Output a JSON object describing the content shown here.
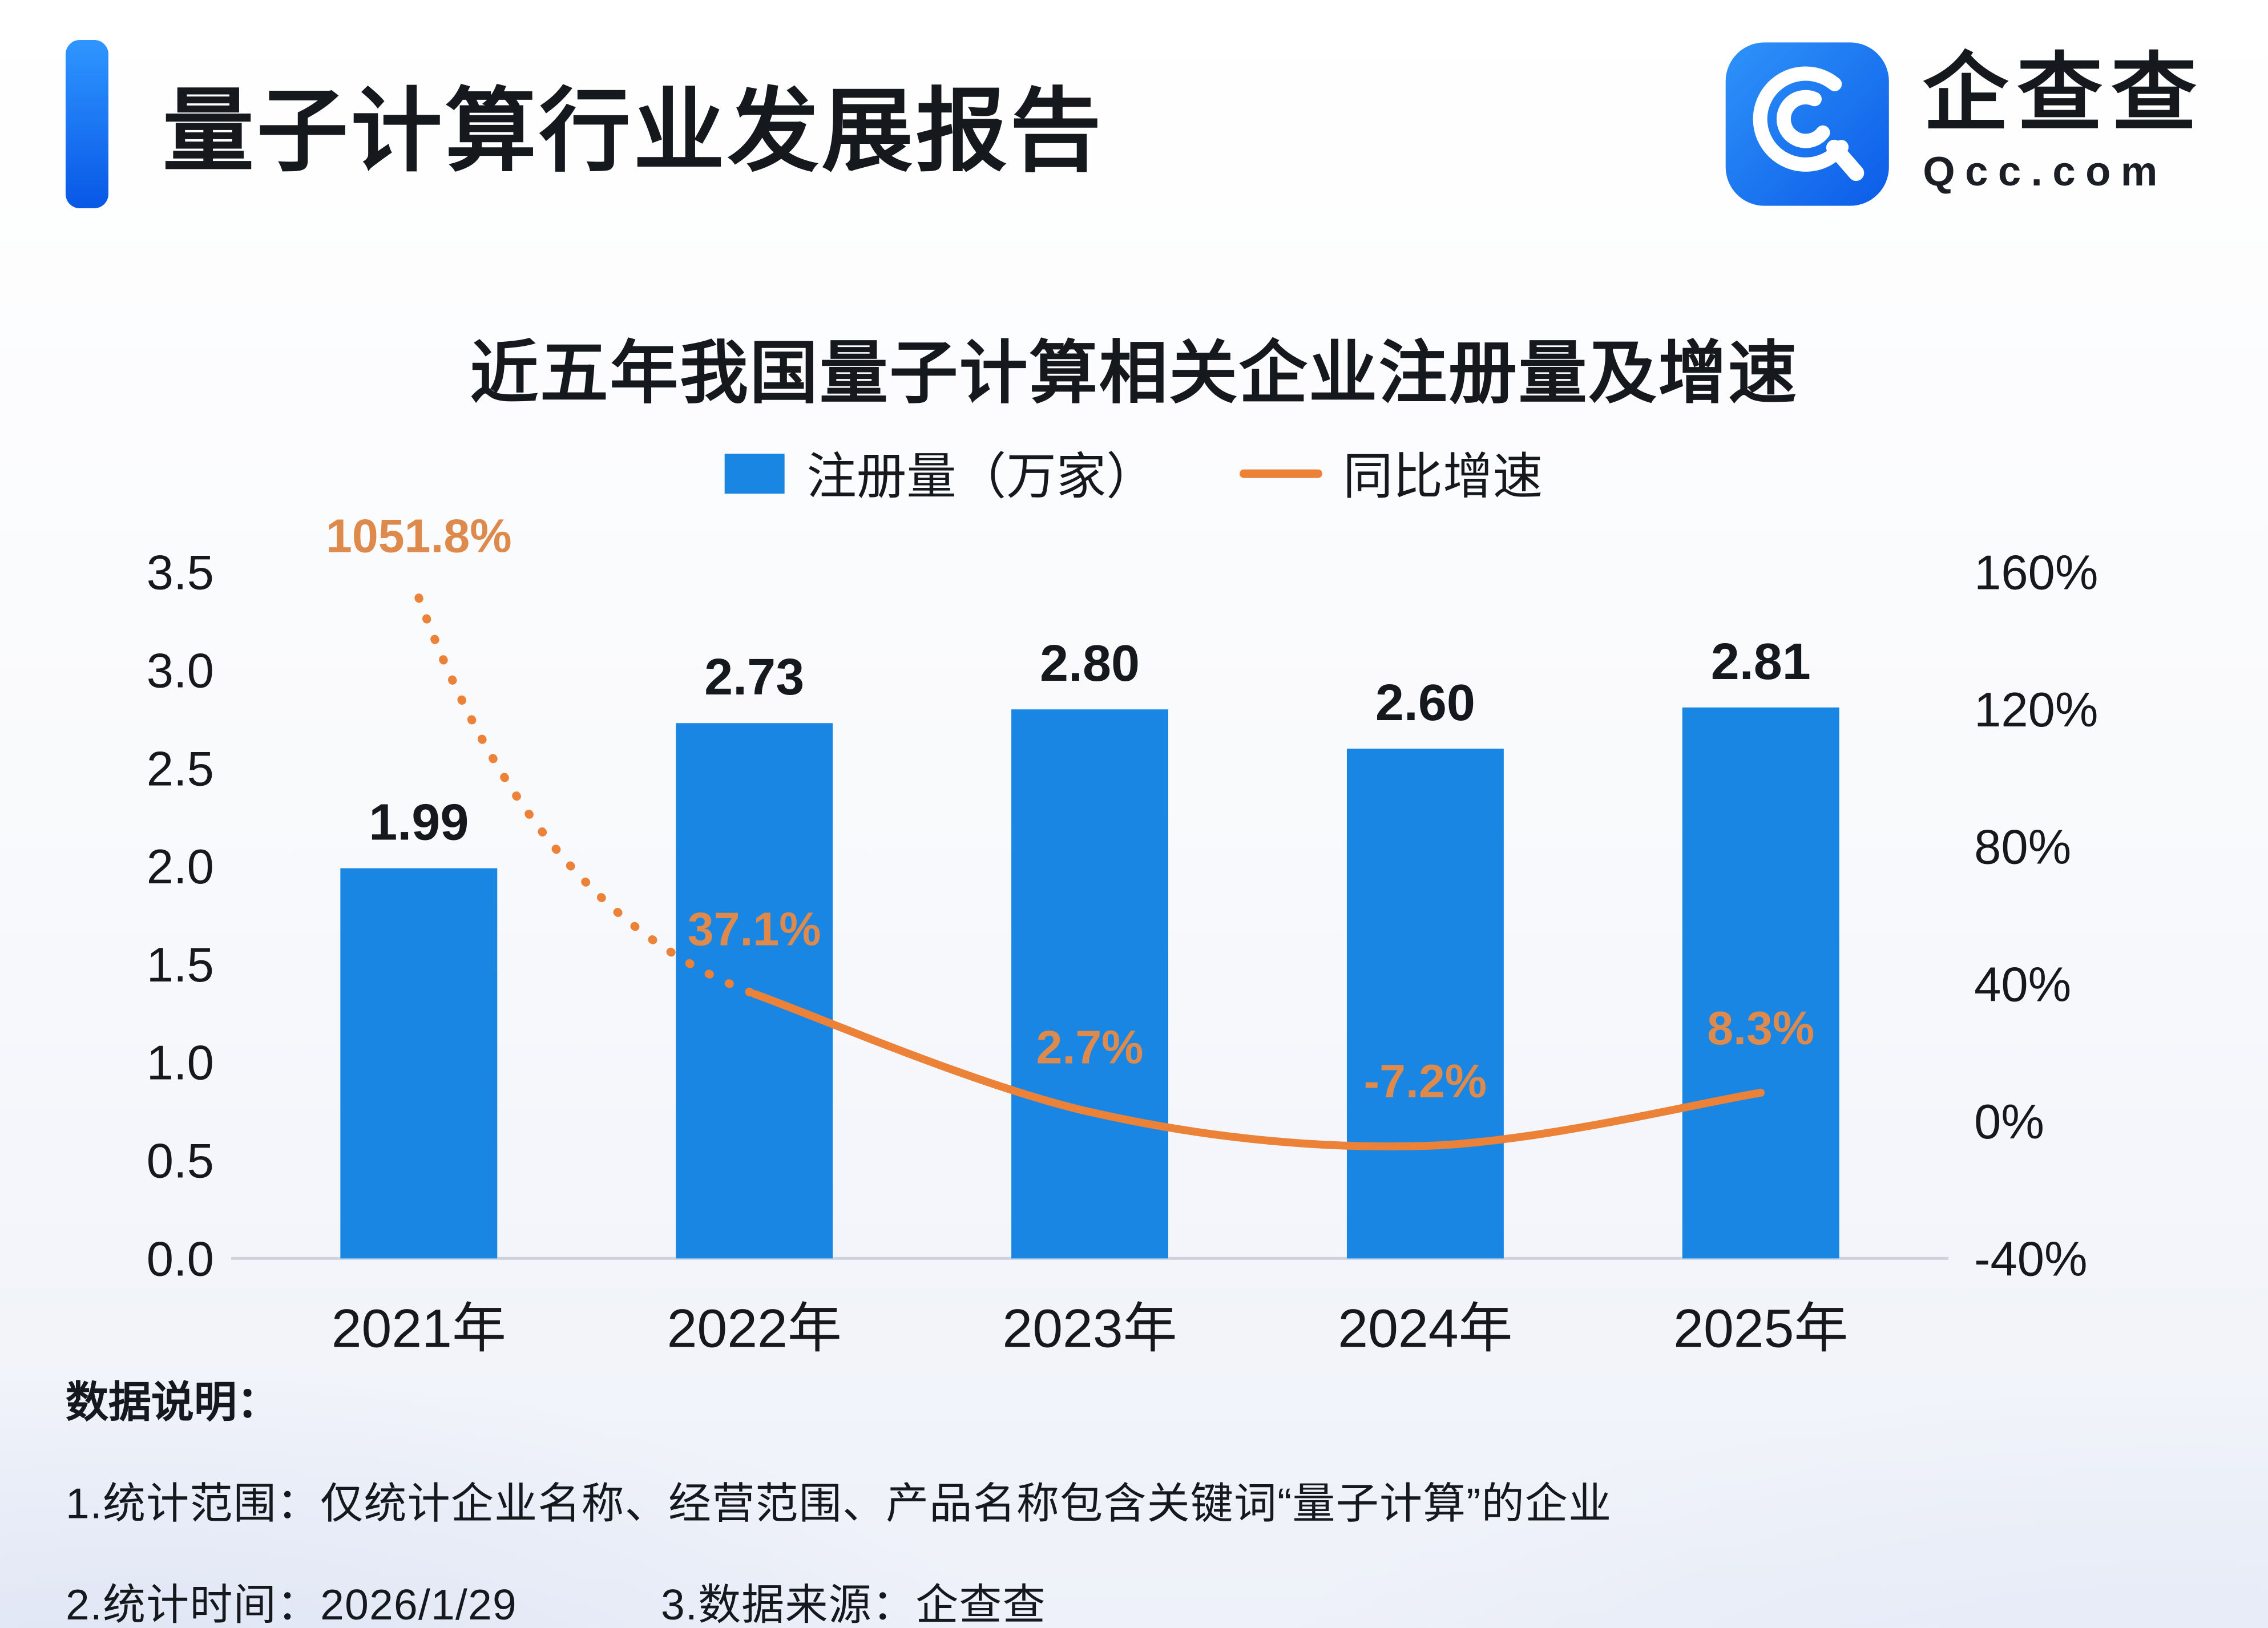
{
  "header": {
    "title": "量子计算行业发展报告",
    "accent_color": "#0f6cf2",
    "brand": {
      "name": "企查查",
      "domain": "Qcc.com",
      "logo_icon": "qcc-logo",
      "logo_color": "#1677f0"
    }
  },
  "chart_data": {
    "type": "bar+line",
    "title": "近五年我国量子计算相关企业注册量及增速",
    "categories": [
      "2021年",
      "2022年",
      "2023年",
      "2024年",
      "2025年"
    ],
    "series": [
      {
        "name": "注册量（万家）",
        "type": "bar",
        "color": "#1a86e3",
        "values": [
          1.99,
          2.73,
          2.8,
          2.6,
          2.81
        ],
        "data_labels": [
          "1.99",
          "2.73",
          "2.80",
          "2.60",
          "2.81"
        ]
      },
      {
        "name": "同比增速",
        "type": "line",
        "color": "#ec8138",
        "label_color": "#dd8a4c",
        "values": [
          1051.8,
          37.1,
          2.7,
          -7.2,
          8.3
        ],
        "data_labels": [
          "1051.8%",
          "37.1%",
          "2.7%",
          "-7.2%",
          "8.3%"
        ]
      }
    ],
    "left_axis": {
      "min": 0,
      "max": 3.5,
      "ticks": [
        "3.5",
        "3.0",
        "2.5",
        "2.0",
        "1.5",
        "1.0",
        "0.5",
        "0.0"
      ]
    },
    "right_axis": {
      "min": -40,
      "max": 160,
      "unit": "%",
      "ticks": [
        "160%",
        "120%",
        "80%",
        "40%",
        "0%",
        "-40%"
      ]
    },
    "grid": false,
    "legend_position": "top-center"
  },
  "footer": {
    "heading": "数据说明：",
    "note1": "1.统计范围：仅统计企业名称、经营范围、产品名称包含关键词“量子计算”的企业",
    "note2_time": "2.统计时间：2026/1/29",
    "note2_source": "3.数据来源：企查查"
  }
}
